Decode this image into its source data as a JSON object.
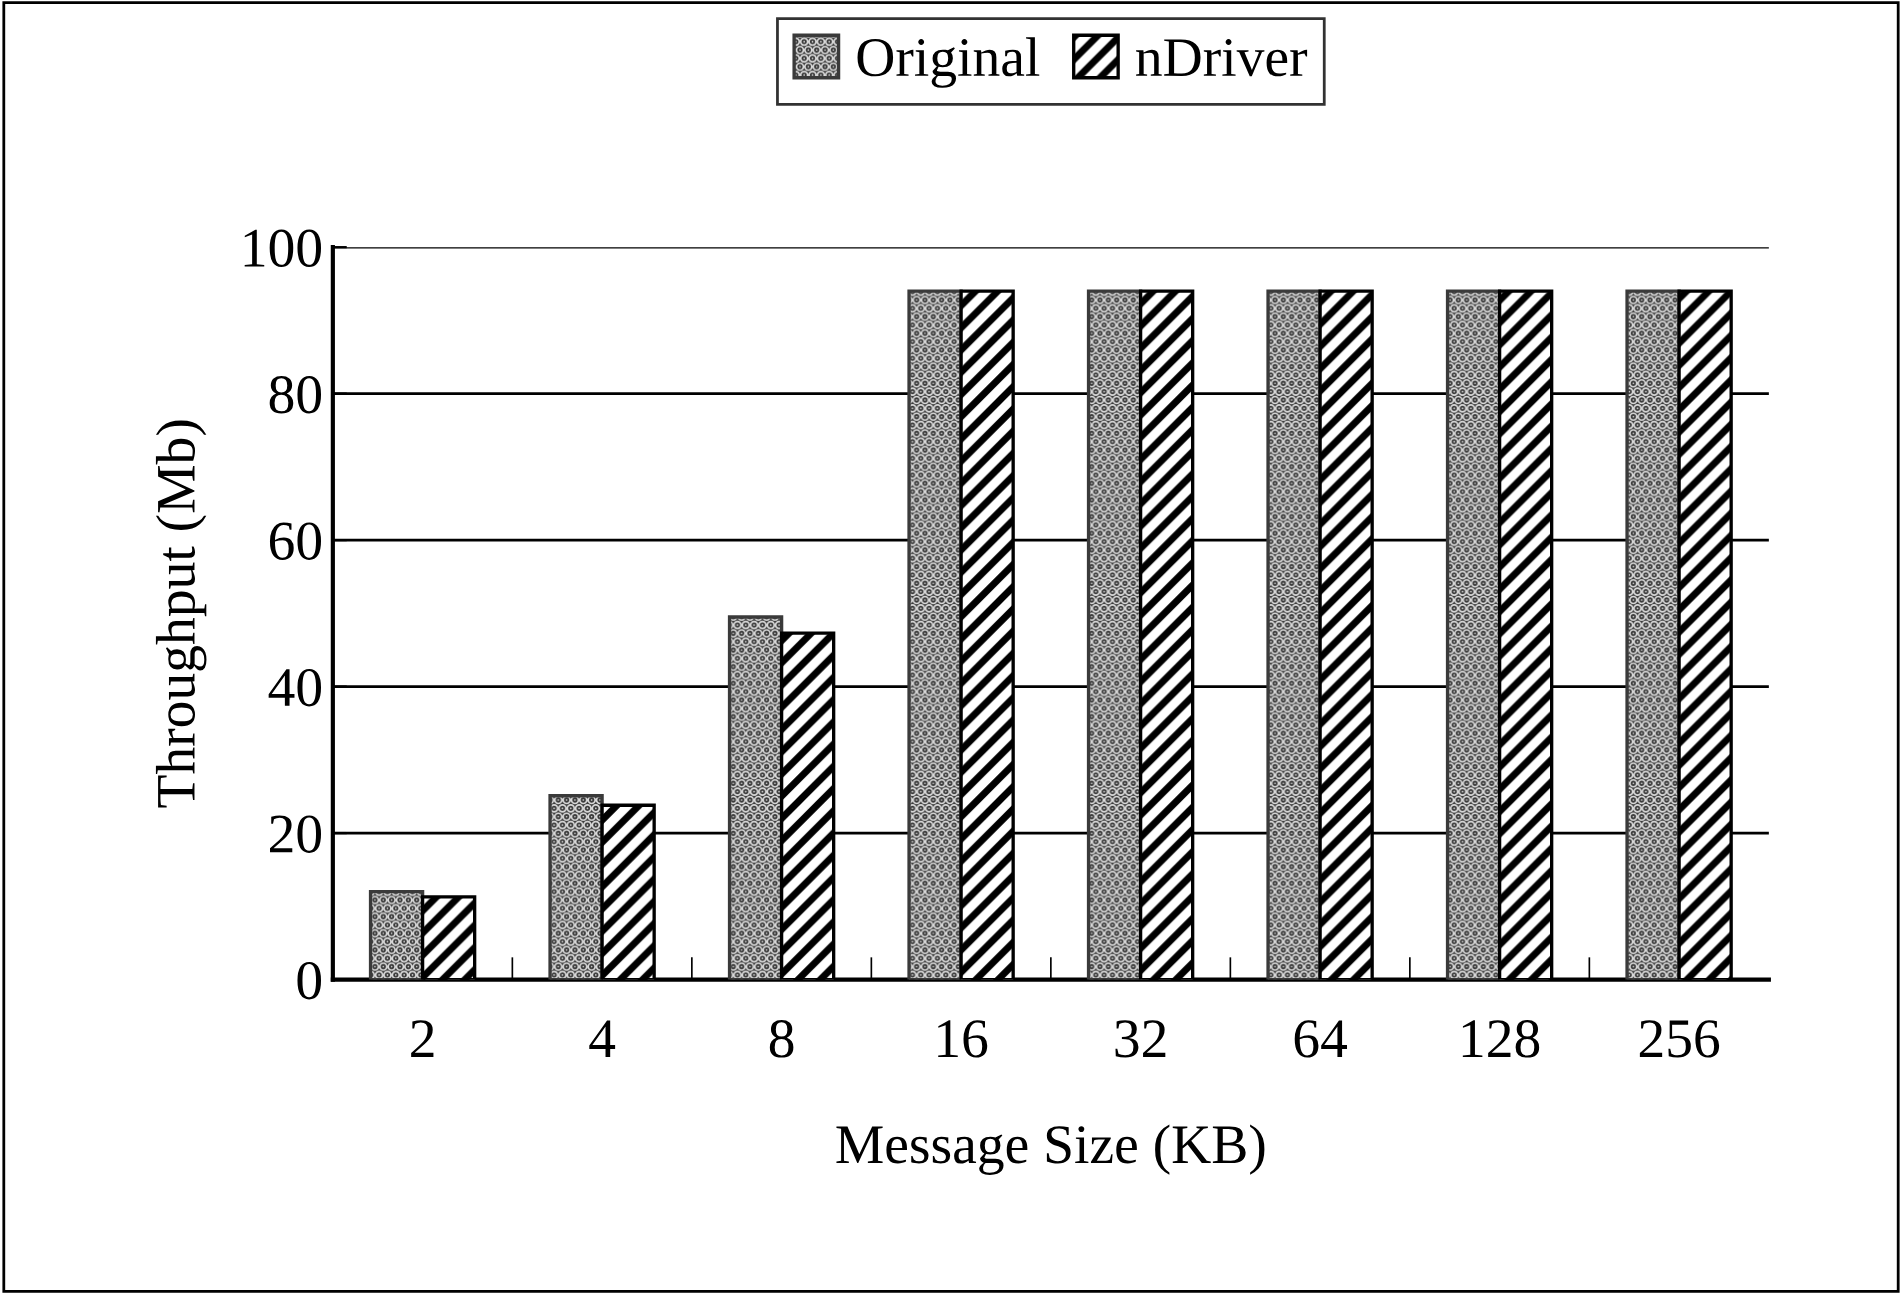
{
  "chart_data": {
    "type": "bar",
    "xlabel": "Message Size (KB)",
    "ylabel": "Throughput (Mb)",
    "categories": [
      "2",
      "4",
      "8",
      "16",
      "32",
      "64",
      "128",
      "256"
    ],
    "series": [
      {
        "name": "Original",
        "color": "#3a3a3a",
        "values": [
          12.0,
          25.1,
          49.5,
          94,
          94,
          94,
          94,
          94
        ]
      },
      {
        "name": "nDriver",
        "color": "#000000",
        "values": [
          11.3,
          23.8,
          47.3,
          94,
          94,
          94,
          94,
          94
        ]
      }
    ],
    "ylim": [
      0,
      100
    ],
    "yticks": [
      0,
      20,
      40,
      60,
      80,
      100
    ],
    "grid": "y",
    "legend": "top"
  }
}
